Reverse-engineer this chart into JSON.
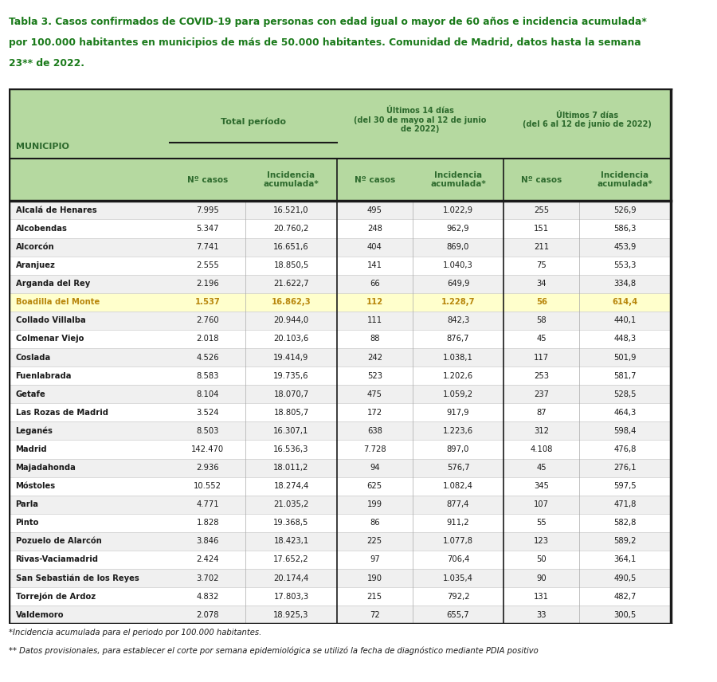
{
  "title_line1": "Tabla 3. Casos confirmados de COVID-19 para personas con edad igual o mayor de 60 años e incidencia acumulada*",
  "title_line2": "por 100.000 habitantes en municipios de más de 50.000 habitantes. Comunidad de Madrid, datos hasta la semana",
  "title_line3": "23** de 2022.",
  "title_color": "#1a7a1a",
  "header_bg": "#b5d9a0",
  "header_text_color": "#2d6a2d",
  "highlight_row": "Boadilla del Monte",
  "highlight_bg": "#ffffcc",
  "highlight_text_color": "#b8860b",
  "row_bg_odd": "#f0f0f0",
  "row_bg_even": "#ffffff",
  "border_color": "#1a1a1a",
  "footnote1": "*Incidencia acumulada para el periodo por 100.000 habitantes.",
  "footnote2": "** Datos provisionales, para establecer el corte por semana epidemiológica se utilizó la fecha de diagnóstico mediante PDIA positivo",
  "municipalities": [
    "Alcalá de Henares",
    "Alcobendas",
    "Alcorcón",
    "Aranjuez",
    "Arganda del Rey",
    "Boadilla del Monte",
    "Collado Villalba",
    "Colmenar Viejo",
    "Coslada",
    "Fuenlabrada",
    "Getafe",
    "Las Rozas de Madrid",
    "Leganés",
    "Madrid",
    "Majadahonda",
    "Móstoles",
    "Parla",
    "Pinto",
    "Pozuelo de Alarcón",
    "Rivas-Vaciamadrid",
    "San Sebastián de los Reyes",
    "Torrejón de Ardoz",
    "Valdemoro"
  ],
  "data": [
    [
      "7.995",
      "16.521,0",
      "495",
      "1.022,9",
      "255",
      "526,9"
    ],
    [
      "5.347",
      "20.760,2",
      "248",
      "962,9",
      "151",
      "586,3"
    ],
    [
      "7.741",
      "16.651,6",
      "404",
      "869,0",
      "211",
      "453,9"
    ],
    [
      "2.555",
      "18.850,5",
      "141",
      "1.040,3",
      "75",
      "553,3"
    ],
    [
      "2.196",
      "21.622,7",
      "66",
      "649,9",
      "34",
      "334,8"
    ],
    [
      "1.537",
      "16.862,3",
      "112",
      "1.228,7",
      "56",
      "614,4"
    ],
    [
      "2.760",
      "20.944,0",
      "111",
      "842,3",
      "58",
      "440,1"
    ],
    [
      "2.018",
      "20.103,6",
      "88",
      "876,7",
      "45",
      "448,3"
    ],
    [
      "4.526",
      "19.414,9",
      "242",
      "1.038,1",
      "117",
      "501,9"
    ],
    [
      "8.583",
      "19.735,6",
      "523",
      "1.202,6",
      "253",
      "581,7"
    ],
    [
      "8.104",
      "18.070,7",
      "475",
      "1.059,2",
      "237",
      "528,5"
    ],
    [
      "3.524",
      "18.805,7",
      "172",
      "917,9",
      "87",
      "464,3"
    ],
    [
      "8.503",
      "16.307,1",
      "638",
      "1.223,6",
      "312",
      "598,4"
    ],
    [
      "142.470",
      "16.536,3",
      "7.728",
      "897,0",
      "4.108",
      "476,8"
    ],
    [
      "2.936",
      "18.011,2",
      "94",
      "576,7",
      "45",
      "276,1"
    ],
    [
      "10.552",
      "18.274,4",
      "625",
      "1.082,4",
      "345",
      "597,5"
    ],
    [
      "4.771",
      "21.035,2",
      "199",
      "877,4",
      "107",
      "471,8"
    ],
    [
      "1.828",
      "19.368,5",
      "86",
      "911,2",
      "55",
      "582,8"
    ],
    [
      "3.846",
      "18.423,1",
      "225",
      "1.077,8",
      "123",
      "589,2"
    ],
    [
      "2.424",
      "17.652,2",
      "97",
      "706,4",
      "50",
      "364,1"
    ],
    [
      "3.702",
      "20.174,4",
      "190",
      "1.035,4",
      "90",
      "490,5"
    ],
    [
      "4.832",
      "17.803,3",
      "215",
      "792,2",
      "131",
      "482,7"
    ],
    [
      "2.078",
      "18.925,3",
      "72",
      "655,7",
      "33",
      "300,5"
    ]
  ]
}
